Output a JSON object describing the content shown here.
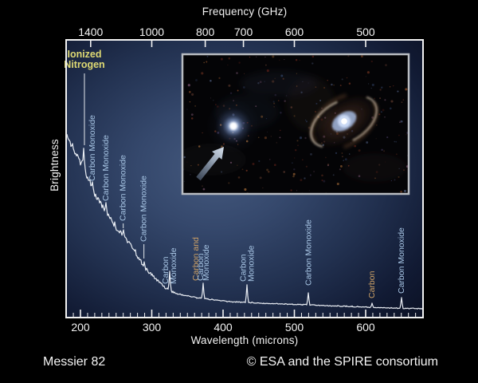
{
  "page": {
    "background": "#000000",
    "footer_left": "Messier 82",
    "footer_right": "© ESA and the SPIRE consortium"
  },
  "inset_image": {
    "description": "far-infrared sky image inset",
    "objects": [
      "bright compact galaxy indicated by arrow",
      "spiral galaxy"
    ],
    "border_color": "#b9bdc2"
  },
  "chart_data": {
    "type": "line",
    "xlabel": "Wavelength (microns)",
    "ylabel": "Brightness",
    "top_axis_label": "Frequency (GHz)",
    "x_range_microns": [
      180,
      680
    ],
    "x_major_ticks_microns": [
      200,
      300,
      400,
      500,
      600
    ],
    "x_minor_tick_step_microns": 10,
    "top_axis_ticks_ghz": [
      1400,
      1000,
      800,
      700,
      600,
      500
    ],
    "grid": false,
    "legend": false,
    "y_axis_note": "qualitative brightness, no tick marks",
    "series": [
      {
        "name": "continuum",
        "points": [
          [
            180,
            0.655
          ],
          [
            186,
            0.632
          ],
          [
            191,
            0.603
          ],
          [
            197,
            0.575
          ],
          [
            202,
            0.549
          ],
          [
            208,
            0.517
          ],
          [
            212,
            0.491
          ],
          [
            217,
            0.463
          ],
          [
            221,
            0.44
          ],
          [
            227,
            0.417
          ],
          [
            232,
            0.397
          ],
          [
            238,
            0.374
          ],
          [
            244,
            0.353
          ],
          [
            251,
            0.319
          ],
          [
            260,
            0.296
          ],
          [
            266,
            0.276
          ],
          [
            272,
            0.259
          ],
          [
            277,
            0.236
          ],
          [
            283,
            0.21
          ],
          [
            290,
            0.178
          ],
          [
            297,
            0.161
          ],
          [
            305,
            0.141
          ],
          [
            314,
            0.121
          ],
          [
            320,
            0.106
          ],
          [
            325,
            0.098
          ],
          [
            335,
            0.086
          ],
          [
            350,
            0.078
          ],
          [
            371,
            0.069
          ],
          [
            389,
            0.063
          ],
          [
            411,
            0.057
          ],
          [
            434,
            0.055
          ],
          [
            456,
            0.052
          ],
          [
            484,
            0.049
          ],
          [
            520,
            0.046
          ],
          [
            545,
            0.043
          ],
          [
            579,
            0.04
          ],
          [
            609,
            0.037
          ],
          [
            649,
            0.034
          ],
          [
            680,
            0.032
          ]
        ]
      }
    ],
    "emission_lines": [
      {
        "species": "ionized nitrogen",
        "wavelength_microns": 205,
        "peak_brightness": 0.61,
        "orientation": "horizontal",
        "text_lines": [
          "Ionized",
          "Nitrogen"
        ],
        "color_key": "yellow",
        "label_cx": 106,
        "label_top": 61,
        "pointer_from": 92,
        "pointer_to": 182
      },
      {
        "species": "carbon monoxide",
        "wavelength_microns": 217,
        "peak_brightness": 0.489,
        "orientation": "vertical",
        "columns": [
          {
            "text": "Carbon Monoxide",
            "color_key": "blue"
          }
        ],
        "label_bottom": 227
      },
      {
        "species": "carbon monoxide",
        "wavelength_microns": 236,
        "peak_brightness": 0.414,
        "orientation": "vertical",
        "columns": [
          {
            "text": "Carbon Monoxide",
            "color_key": "blue"
          }
        ],
        "label_bottom": 252
      },
      {
        "species": "carbon monoxide",
        "wavelength_microns": 260,
        "peak_brightness": 0.316,
        "orientation": "vertical",
        "columns": [
          {
            "text": "Carbon Monoxide",
            "color_key": "blue"
          }
        ],
        "label_bottom": 277,
        "pointer_to": 286
      },
      {
        "species": "carbon monoxide",
        "wavelength_microns": 289,
        "peak_brightness": 0.201,
        "orientation": "vertical",
        "columns": [
          {
            "text": "Carbon Monoxide",
            "color_key": "blue"
          }
        ],
        "label_bottom": 303,
        "pointer_to": 324
      },
      {
        "species": "carbon monoxide",
        "wavelength_microns": 325,
        "peak_brightness": 0.167,
        "orientation": "vertical",
        "columns": [
          {
            "text": "Carbon",
            "color_key": "blue"
          },
          {
            "text": "Monoxide",
            "color_key": "blue"
          }
        ],
        "label_bottom": 356
      },
      {
        "species": "carbon and carbon monoxide",
        "wavelength_microns": 372,
        "peak_brightness": 0.124,
        "orientation": "vertical",
        "columns": [
          {
            "text": "Carbon and",
            "color_key": "orange"
          },
          {
            "text": "Carbon",
            "color_key": "blue"
          },
          {
            "text": "Monoxide",
            "color_key": "blue"
          }
        ],
        "label_bottom": 352
      },
      {
        "species": "carbon monoxide",
        "wavelength_microns": 434,
        "peak_brightness": 0.118,
        "orientation": "vertical",
        "columns": [
          {
            "text": "Carbon",
            "color_key": "blue"
          },
          {
            "text": "Monoxide",
            "color_key": "blue"
          }
        ],
        "label_bottom": 353
      },
      {
        "species": "carbon monoxide",
        "wavelength_microns": 520,
        "peak_brightness": 0.089,
        "orientation": "vertical",
        "columns": [
          {
            "text": "Carbon Monoxide",
            "color_key": "blue"
          }
        ],
        "label_bottom": 358
      },
      {
        "species": "atomic carbon",
        "wavelength_microns": 609,
        "peak_brightness": 0.052,
        "orientation": "vertical",
        "columns": [
          {
            "text": "Carbon",
            "color_key": "orange"
          }
        ],
        "label_bottom": 374
      },
      {
        "species": "carbon monoxide",
        "wavelength_microns": 650,
        "peak_brightness": 0.072,
        "orientation": "vertical",
        "columns": [
          {
            "text": "Carbon Monoxide",
            "color_key": "blue"
          }
        ],
        "label_bottom": 368
      }
    ]
  },
  "colors": {
    "plot_glow_center": "#44597e",
    "plot_edge": "#0c1226",
    "curve": "#e9edf3",
    "axis": "#f2f2f2",
    "yellow": "#ded973",
    "blue": "#a9c7e6",
    "orange": "#cfa266"
  }
}
